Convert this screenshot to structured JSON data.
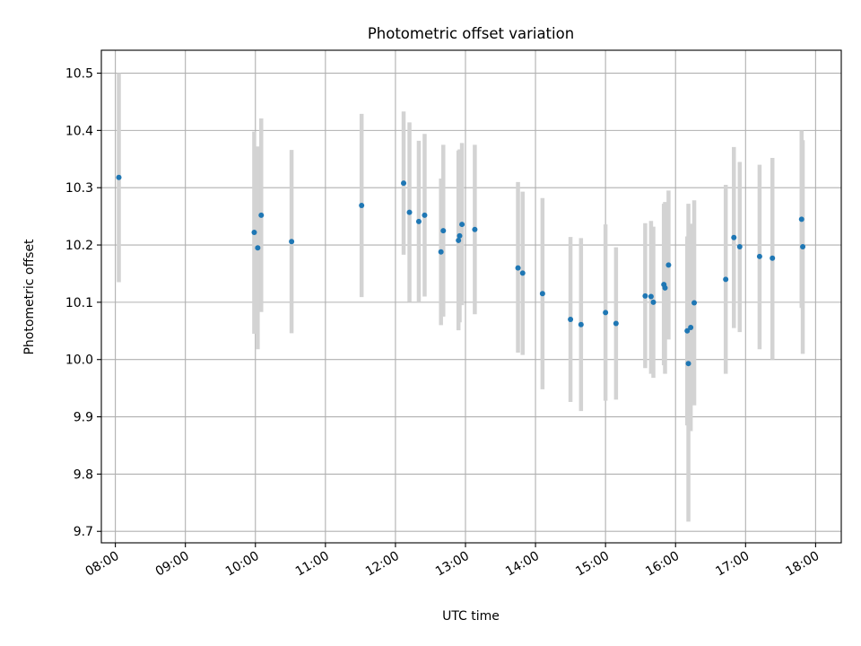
{
  "chart_data": {
    "type": "scatter",
    "title": "Photometric offset variation",
    "xlabel": "UTC time",
    "ylabel": "Photometric offset",
    "xlim": [
      "07:48",
      "18:22"
    ],
    "ylim": [
      9.68,
      10.54
    ],
    "x_ticks": [
      "08:00",
      "09:00",
      "10:00",
      "11:00",
      "12:00",
      "13:00",
      "14:00",
      "15:00",
      "16:00",
      "17:00",
      "18:00"
    ],
    "y_ticks": [
      "9.7",
      "9.8",
      "9.9",
      "10.0",
      "10.1",
      "10.2",
      "10.3",
      "10.4",
      "10.5"
    ],
    "grid": true,
    "colors": {
      "point": "#1f77b4",
      "errorbar": "#d3d3d3",
      "grid": "#b0b0b0"
    },
    "points": [
      {
        "t": "08:03",
        "y": 10.318,
        "low": 10.135,
        "high": 10.5
      },
      {
        "t": "09:59",
        "y": 10.222,
        "low": 10.045,
        "high": 10.398
      },
      {
        "t": "10:02",
        "y": 10.195,
        "low": 10.018,
        "high": 10.372
      },
      {
        "t": "10:05",
        "y": 10.252,
        "low": 10.083,
        "high": 10.421
      },
      {
        "t": "10:31",
        "y": 10.206,
        "low": 10.046,
        "high": 10.366
      },
      {
        "t": "11:31",
        "y": 10.269,
        "low": 10.109,
        "high": 10.429
      },
      {
        "t": "12:07",
        "y": 10.308,
        "low": 10.183,
        "high": 10.433
      },
      {
        "t": "12:12",
        "y": 10.257,
        "low": 10.101,
        "high": 10.414
      },
      {
        "t": "12:20",
        "y": 10.241,
        "low": 10.1,
        "high": 10.382
      },
      {
        "t": "12:25",
        "y": 10.252,
        "low": 10.11,
        "high": 10.394
      },
      {
        "t": "12:39",
        "y": 10.188,
        "low": 10.06,
        "high": 10.316
      },
      {
        "t": "12:41",
        "y": 10.225,
        "low": 10.075,
        "high": 10.375
      },
      {
        "t": "12:54",
        "y": 10.208,
        "low": 10.051,
        "high": 10.365
      },
      {
        "t": "12:55",
        "y": 10.216,
        "low": 10.065,
        "high": 10.367
      },
      {
        "t": "12:57",
        "y": 10.236,
        "low": 10.095,
        "high": 10.378
      },
      {
        "t": "13:08",
        "y": 10.227,
        "low": 10.079,
        "high": 10.375
      },
      {
        "t": "13:45",
        "y": 10.16,
        "low": 10.012,
        "high": 10.31
      },
      {
        "t": "13:49",
        "y": 10.151,
        "low": 10.008,
        "high": 10.293
      },
      {
        "t": "14:06",
        "y": 10.115,
        "low": 9.948,
        "high": 10.282
      },
      {
        "t": "14:30",
        "y": 10.07,
        "low": 9.926,
        "high": 10.214
      },
      {
        "t": "14:39",
        "y": 10.061,
        "low": 9.91,
        "high": 10.212
      },
      {
        "t": "15:00",
        "y": 10.082,
        "low": 9.928,
        "high": 10.236
      },
      {
        "t": "15:09",
        "y": 10.063,
        "low": 9.93,
        "high": 10.196
      },
      {
        "t": "15:34",
        "y": 10.111,
        "low": 9.985,
        "high": 10.238
      },
      {
        "t": "15:39",
        "y": 10.11,
        "low": 9.975,
        "high": 10.242
      },
      {
        "t": "15:41",
        "y": 10.1,
        "low": 9.968,
        "high": 10.232
      },
      {
        "t": "15:50",
        "y": 10.131,
        "low": 9.99,
        "high": 10.272
      },
      {
        "t": "15:51",
        "y": 10.125,
        "low": 9.975,
        "high": 10.275
      },
      {
        "t": "15:54",
        "y": 10.165,
        "low": 10.035,
        "high": 10.295
      },
      {
        "t": "16:10",
        "y": 10.05,
        "low": 9.885,
        "high": 10.215
      },
      {
        "t": "16:11",
        "y": 9.993,
        "low": 9.717,
        "high": 10.272
      },
      {
        "t": "16:13",
        "y": 10.056,
        "low": 9.875,
        "high": 10.237
      },
      {
        "t": "16:16",
        "y": 10.099,
        "low": 9.92,
        "high": 10.278
      },
      {
        "t": "16:43",
        "y": 10.14,
        "low": 9.975,
        "high": 10.305
      },
      {
        "t": "16:50",
        "y": 10.213,
        "low": 10.055,
        "high": 10.371
      },
      {
        "t": "16:55",
        "y": 10.197,
        "low": 10.048,
        "high": 10.345
      },
      {
        "t": "17:12",
        "y": 10.18,
        "low": 10.018,
        "high": 10.34
      },
      {
        "t": "17:23",
        "y": 10.177,
        "low": 10.0,
        "high": 10.352
      },
      {
        "t": "17:48",
        "y": 10.245,
        "low": 10.09,
        "high": 10.4
      },
      {
        "t": "17:49",
        "y": 10.197,
        "low": 10.01,
        "high": 10.383
      }
    ]
  }
}
